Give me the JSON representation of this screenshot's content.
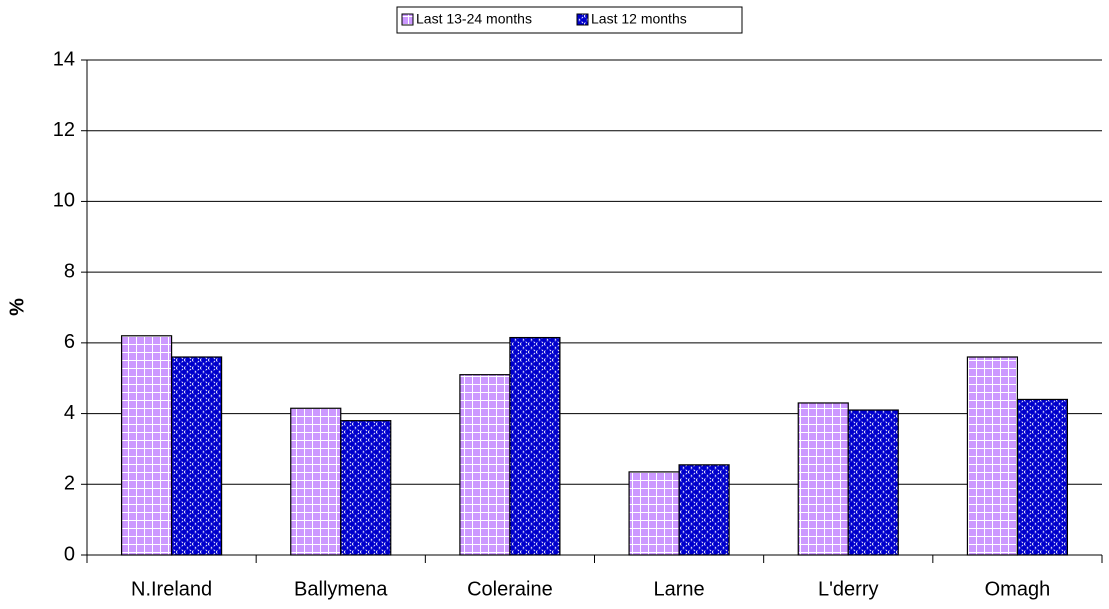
{
  "chart_data": {
    "type": "bar",
    "y_label": "%",
    "categories": [
      "N.Ireland",
      "Ballymena",
      "Coleraine",
      "Larne",
      "L'derry",
      "Omagh"
    ],
    "series": [
      {
        "name": "Last 13-24 months",
        "color": "#cc99ff",
        "values": [
          6.2,
          4.15,
          5.1,
          2.35,
          4.3,
          5.6
        ]
      },
      {
        "name": "Last 12 months",
        "color": "#0000cc",
        "values": [
          5.6,
          3.8,
          6.15,
          2.55,
          4.1,
          4.4
        ]
      }
    ],
    "ylim": [
      0,
      14
    ],
    "yticks": [
      0,
      2,
      4,
      6,
      8,
      10,
      12,
      14
    ],
    "grid": true,
    "legend": "top"
  }
}
